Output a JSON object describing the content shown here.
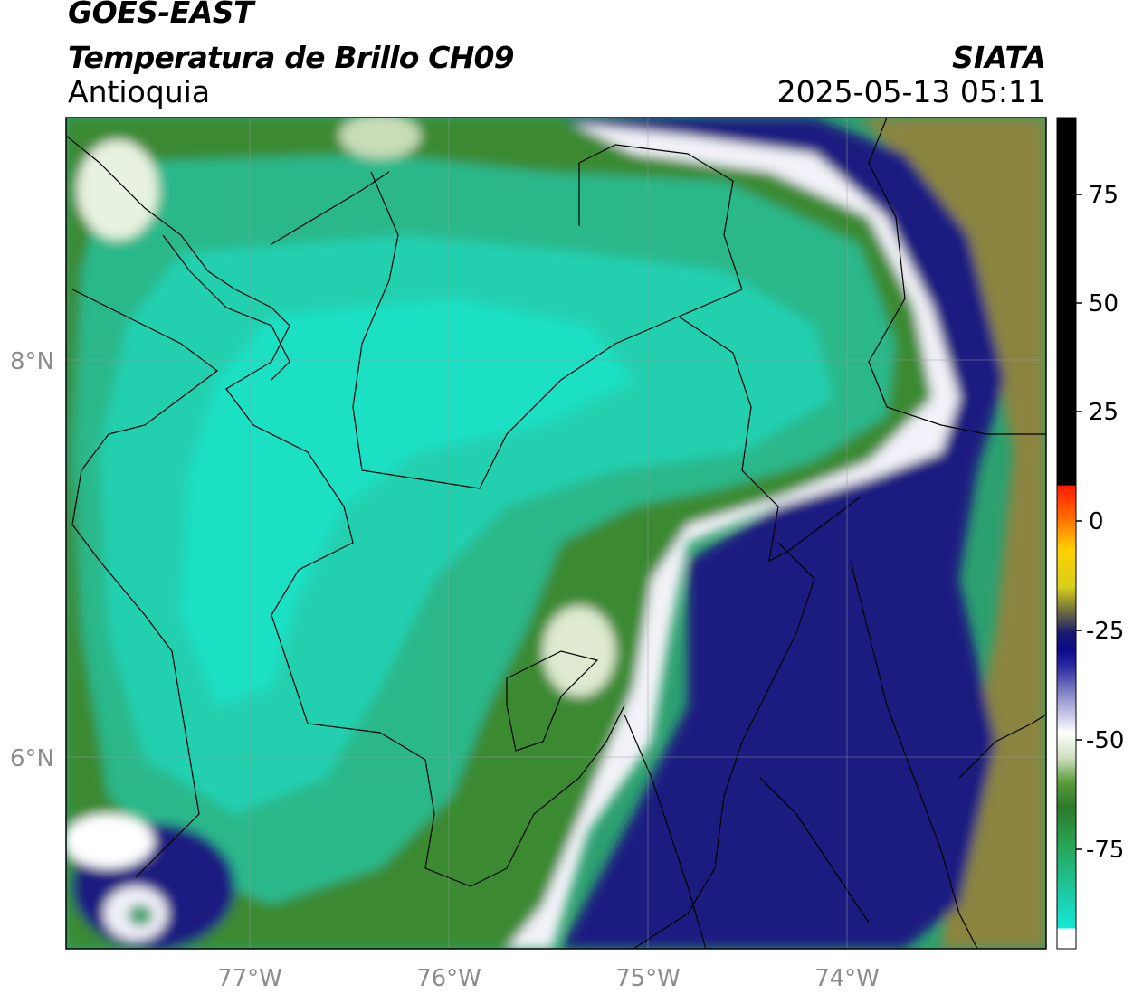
{
  "header": {
    "satellite": "GOES-EAST",
    "product": "Temperatura de Brillo CH09",
    "region": "Antioquia",
    "organization": "SIATA",
    "timestamp": "2025-05-13 05:11"
  },
  "map": {
    "longitude_ticks": [
      "77°W",
      "76°W",
      "75°W",
      "74°W"
    ],
    "latitude_ticks": [
      "8°N",
      "6°N"
    ],
    "grid": true
  },
  "colorbar": {
    "tick_labels": [
      "75",
      "50",
      "25",
      "0",
      "-25",
      "-50",
      "-75"
    ],
    "colors": {
      "warm": "#000000",
      "red": "#ff2a00",
      "orange": "#ff9900",
      "yellow": "#fff200",
      "olive": "#7a7a3a",
      "navy": "#0a0a80",
      "white": "#ffffff",
      "green": "#2d8a2a",
      "cyan": "#1de3c8"
    }
  }
}
